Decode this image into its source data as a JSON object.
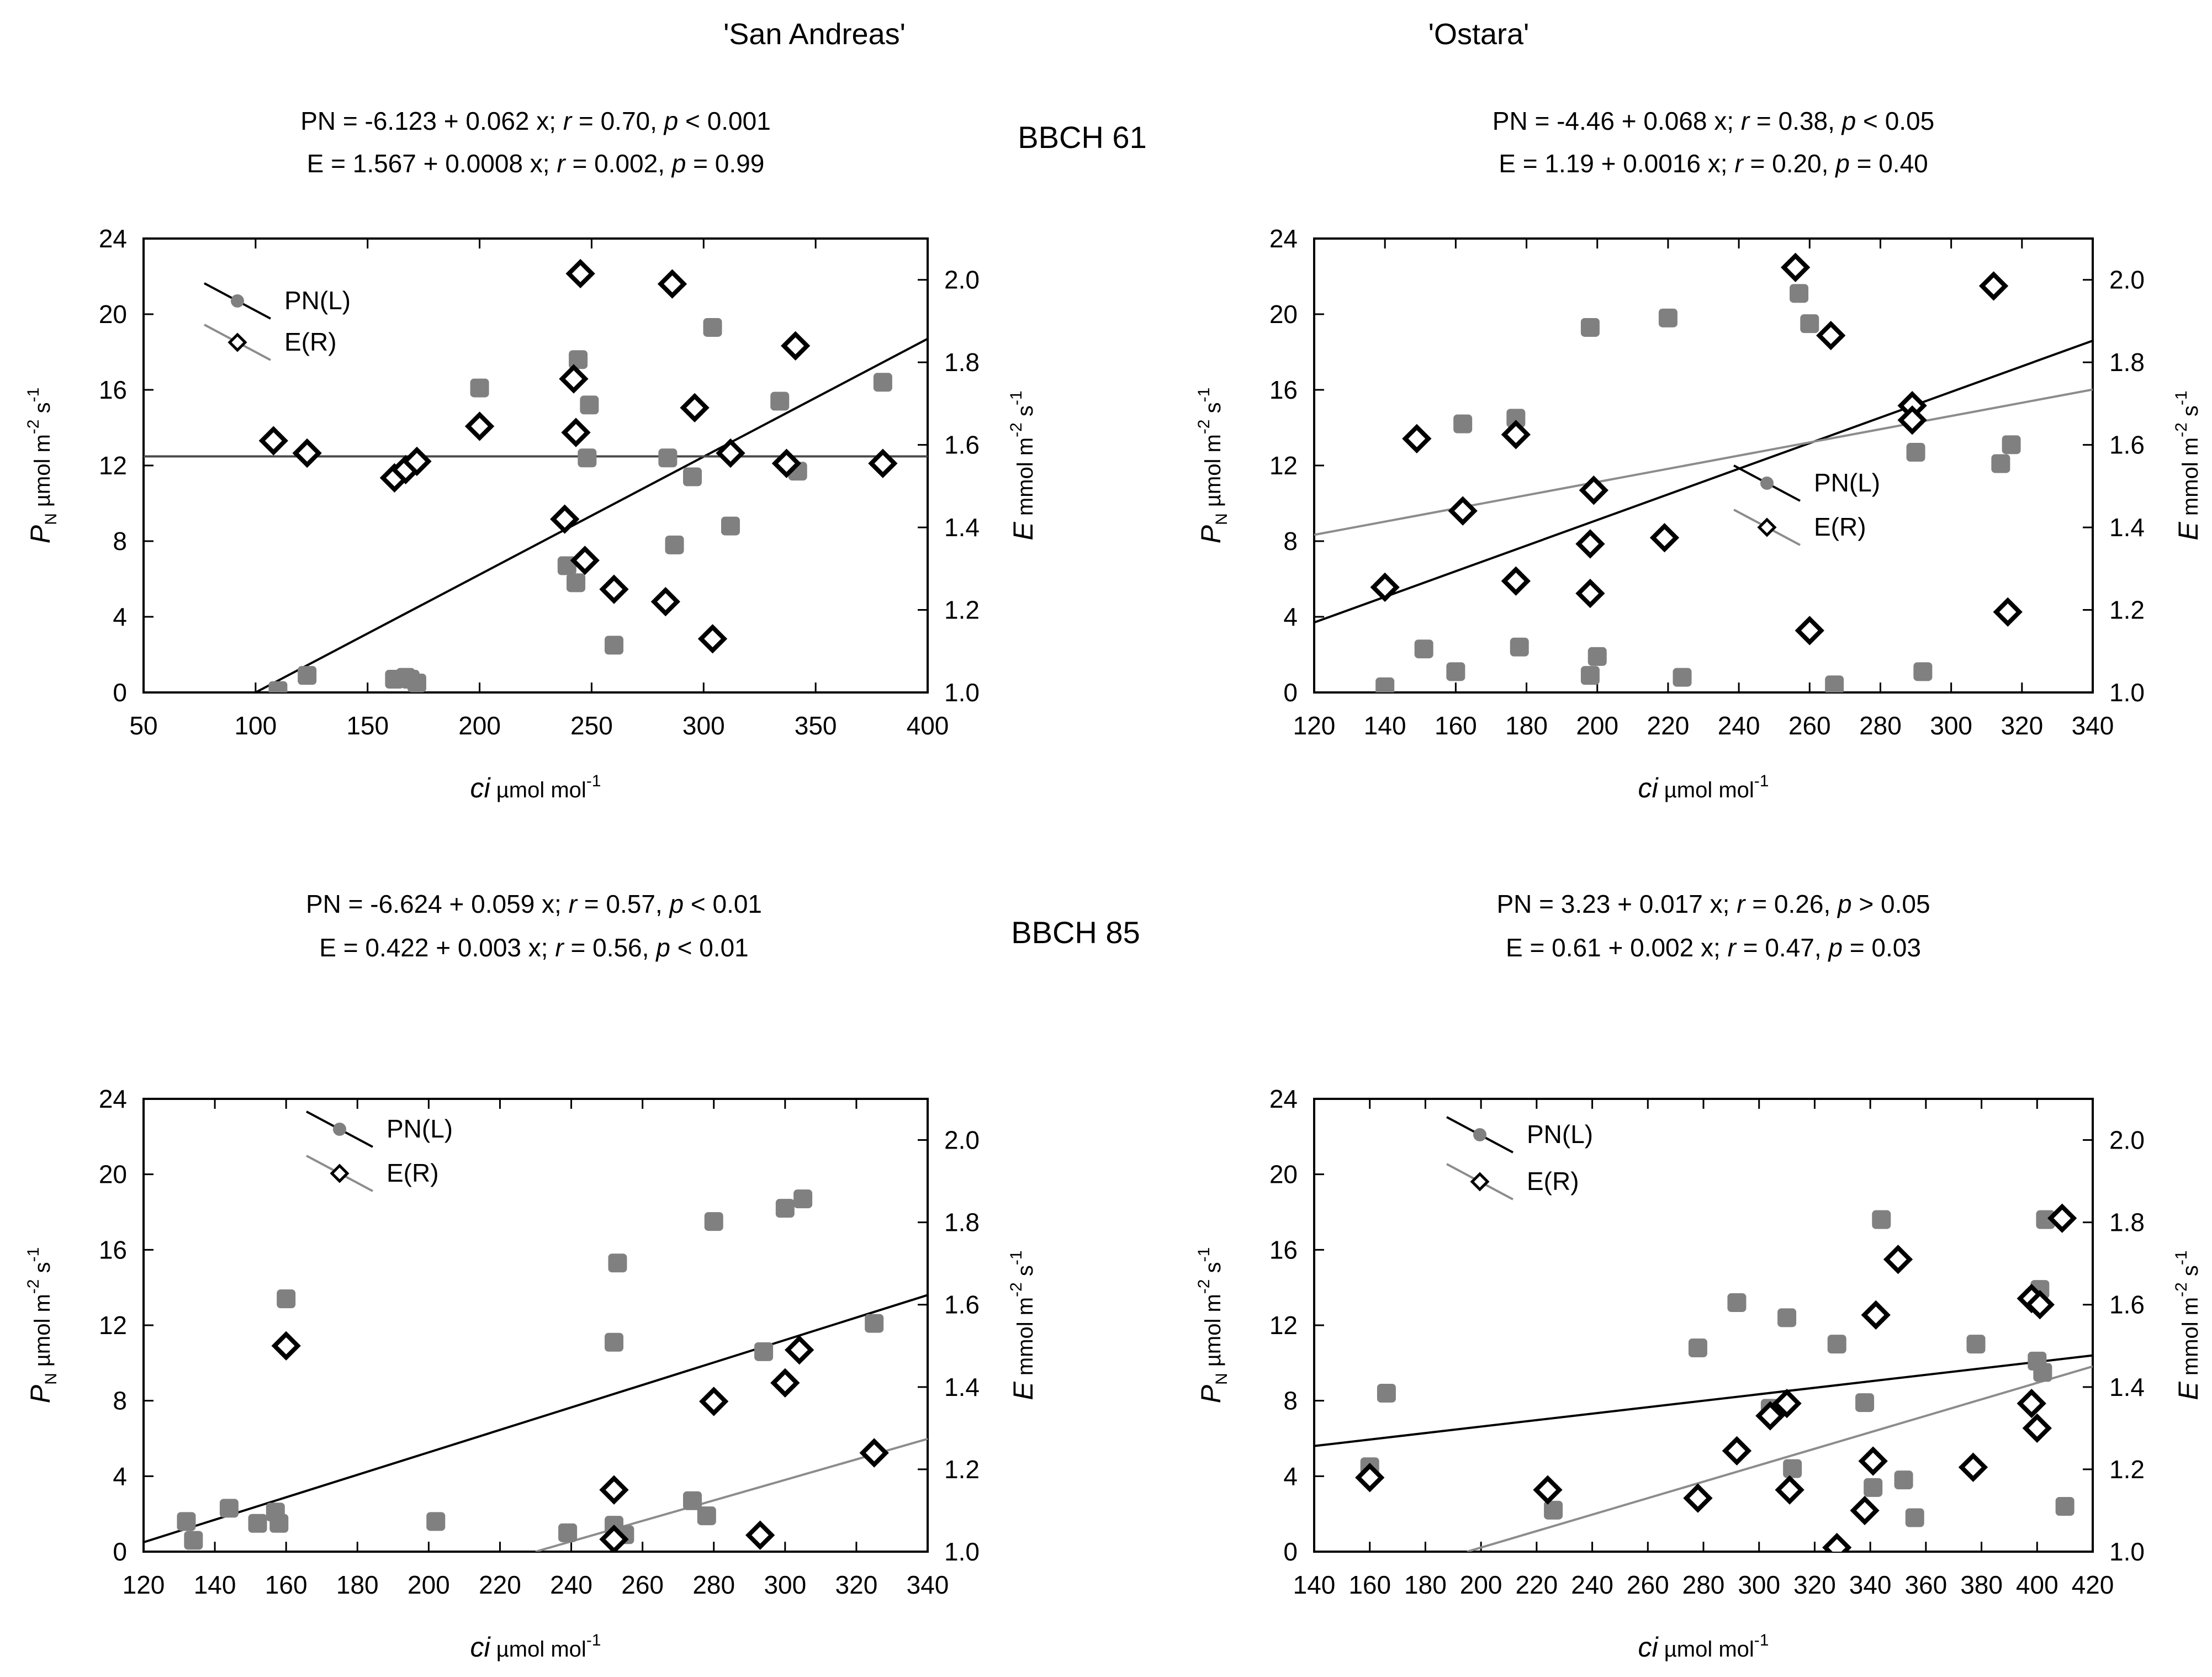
{
  "figure": {
    "col_titles": [
      "'San Andreas'",
      "'Ostara'"
    ],
    "stage_labels": [
      "BBCH 61",
      "BBCH 85"
    ],
    "legend": {
      "pn_label": "PN(L)",
      "e_label": "E(R)"
    },
    "axis_text": {
      "x_main": "ci",
      "x_unit": " µmol mol",
      "x_exp": "-1",
      "yl_main": "P",
      "yl_sub": "N",
      "yl_unit1": " µmol m",
      "yl_exp1": "-2",
      "yl_unit2": " s",
      "yl_exp2": "-1",
      "yr_main": "E",
      "yr_unit1": " mmol m",
      "yr_exp1": "-2",
      "yr_unit2": " s",
      "yr_exp2": "-1"
    }
  },
  "chart_data": [
    {
      "type": "scatter",
      "id": "sa61",
      "cultivar": "'San Andreas'",
      "stage": "BBCH 61",
      "equations": {
        "pn": {
          "a": "PN = -6.123 + 0.062 x; ",
          "r_sym": "r",
          "b": " = 0.70, ",
          "p_sym": "p",
          "c": " < 0.001"
        },
        "e": {
          "a": "E = 1.567 + 0.0008 x; ",
          "r_sym": "r",
          "b": " = 0.002, ",
          "p_sym": "p",
          "c": " = 0.99"
        }
      },
      "xlim": [
        50,
        400
      ],
      "xticks": [
        50,
        100,
        150,
        200,
        250,
        300,
        350,
        400
      ],
      "ylim_left": [
        0,
        24
      ],
      "yticks_left": [
        0,
        4,
        8,
        12,
        16,
        20,
        24
      ],
      "ylim_right": [
        1.0,
        2.1
      ],
      "yticks_right": [
        1.0,
        1.2,
        1.4,
        1.6,
        1.8,
        2.0
      ],
      "legend_position": "top-left",
      "series": [
        {
          "name": "PN(L)",
          "axis": "left",
          "marker": "square-gray",
          "points": [
            [
              110,
              0.1
            ],
            [
              123,
              0.9
            ],
            [
              162,
              0.7
            ],
            [
              167,
              0.8
            ],
            [
              169,
              0.7
            ],
            [
              172,
              0.5
            ],
            [
              200,
              16.1
            ],
            [
              239,
              6.7
            ],
            [
              243,
              5.8
            ],
            [
              244,
              17.6
            ],
            [
              248,
              12.4
            ],
            [
              249,
              15.2
            ],
            [
              260,
              2.5
            ],
            [
              284,
              12.4
            ],
            [
              287,
              7.8
            ],
            [
              295,
              11.4
            ],
            [
              304,
              19.3
            ],
            [
              312,
              8.8
            ],
            [
              334,
              15.4
            ],
            [
              342,
              11.7
            ],
            [
              380,
              16.4
            ]
          ],
          "fit": {
            "line": [
              [
                100,
                0
              ],
              [
                400,
                18.7
              ]
            ],
            "color": "#000000"
          }
        },
        {
          "name": "E(R)",
          "axis": "right",
          "marker": "diamond-open",
          "points": [
            [
              108,
              1.61
            ],
            [
              123,
              1.58
            ],
            [
              162,
              1.52
            ],
            [
              167,
              1.54
            ],
            [
              172,
              1.56
            ],
            [
              200,
              1.645
            ],
            [
              238,
              1.42
            ],
            [
              242,
              1.76
            ],
            [
              243,
              1.63
            ],
            [
              245,
              2.015
            ],
            [
              247,
              1.32
            ],
            [
              260,
              1.25
            ],
            [
              283,
              1.22
            ],
            [
              286,
              1.99
            ],
            [
              296,
              1.69
            ],
            [
              304,
              1.13
            ],
            [
              312,
              1.58
            ],
            [
              337,
              1.555
            ],
            [
              341,
              1.84
            ],
            [
              380,
              1.555
            ]
          ],
          "fit": {
            "line": [
              [
                50,
                1.572
              ],
              [
                400,
                1.572
              ]
            ],
            "color": "#4a4a4a"
          }
        }
      ]
    },
    {
      "type": "scatter",
      "id": "os61",
      "cultivar": "'Ostara'",
      "stage": "BBCH 61",
      "equations": {
        "pn": {
          "a": "PN = -4.46 + 0.068 x; ",
          "r_sym": "r",
          "b": " = 0.38, ",
          "p_sym": "p",
          "c": " < 0.05"
        },
        "e": {
          "a": "E = 1.19 + 0.0016 x; ",
          "r_sym": "r",
          "b": " = 0.20, ",
          "p_sym": "p",
          "c": " = 0.40"
        }
      },
      "xlim": [
        120,
        340
      ],
      "xticks": [
        120,
        140,
        160,
        180,
        200,
        220,
        240,
        260,
        280,
        300,
        320,
        340
      ],
      "ylim_left": [
        0,
        24
      ],
      "yticks_left": [
        0,
        4,
        8,
        12,
        16,
        20,
        24
      ],
      "ylim_right": [
        1.0,
        2.1
      ],
      "yticks_right": [
        1.0,
        1.2,
        1.4,
        1.6,
        1.8,
        2.0
      ],
      "legend_position": "center-right",
      "series": [
        {
          "name": "PN(L)",
          "axis": "left",
          "marker": "square-gray",
          "points": [
            [
              140,
              0.3
            ],
            [
              151,
              2.3
            ],
            [
              160,
              1.1
            ],
            [
              162,
              14.2
            ],
            [
              177,
              14.5
            ],
            [
              178,
              2.4
            ],
            [
              198,
              19.3
            ],
            [
              198,
              0.9
            ],
            [
              200,
              1.9
            ],
            [
              220,
              19.8
            ],
            [
              224,
              0.8
            ],
            [
              257,
              21.1
            ],
            [
              260,
              19.5
            ],
            [
              267,
              0.4
            ],
            [
              290,
              12.7
            ],
            [
              292,
              1.1
            ],
            [
              314,
              12.1
            ],
            [
              317,
              13.1
            ]
          ],
          "fit": {
            "line": [
              [
                120,
                3.7
              ],
              [
                340,
                18.6
              ]
            ],
            "color": "#000000"
          }
        },
        {
          "name": "E(R)",
          "axis": "right",
          "marker": "diamond-open",
          "points": [
            [
              140,
              1.255
            ],
            [
              149,
              1.615
            ],
            [
              162,
              1.44
            ],
            [
              177,
              1.27
            ],
            [
              177,
              1.625
            ],
            [
              198,
              1.36
            ],
            [
              198,
              1.24
            ],
            [
              199,
              1.49
            ],
            [
              219,
              1.375
            ],
            [
              256,
              2.03
            ],
            [
              260,
              1.15
            ],
            [
              266,
              1.865
            ],
            [
              289,
              1.695
            ],
            [
              289,
              1.66
            ],
            [
              312,
              1.985
            ],
            [
              316,
              1.195
            ]
          ],
          "fit": {
            "line": [
              [
                120,
                1.382
              ],
              [
                340,
                1.734
              ]
            ],
            "color": "#8c8c8c"
          }
        }
      ]
    },
    {
      "type": "scatter",
      "id": "sa85",
      "cultivar": "'San Andreas'",
      "stage": "BBCH 85",
      "equations": {
        "pn": {
          "a": "PN = -6.624 + 0.059 x; ",
          "r_sym": "r",
          "b": " = 0.57, ",
          "p_sym": "p",
          "c": " < 0.01"
        },
        "e": {
          "a": "E = 0.422 + 0.003 x; ",
          "r_sym": "r",
          "b": " = 0.56, ",
          "p_sym": "p",
          "c": " < 0.01"
        }
      },
      "xlim": [
        120,
        340
      ],
      "xticks": [
        120,
        140,
        160,
        180,
        200,
        220,
        240,
        260,
        280,
        300,
        320,
        340
      ],
      "ylim_left": [
        0,
        24
      ],
      "yticks_left": [
        0,
        4,
        8,
        12,
        16,
        20,
        24
      ],
      "ylim_right": [
        1.0,
        2.1
      ],
      "yticks_right": [
        1.0,
        1.2,
        1.4,
        1.6,
        1.8,
        2.0
      ],
      "legend_position": "top-left",
      "series": [
        {
          "name": "PN(L)",
          "axis": "left",
          "marker": "square-gray",
          "points": [
            [
              132,
              1.6
            ],
            [
              134,
              0.6
            ],
            [
              144,
              2.3
            ],
            [
              152,
              1.5
            ],
            [
              157,
              2.1
            ],
            [
              158,
              1.5
            ],
            [
              160,
              13.4
            ],
            [
              202,
              1.6
            ],
            [
              239,
              1.0
            ],
            [
              252,
              11.1
            ],
            [
              253,
              15.3
            ],
            [
              252,
              1.4
            ],
            [
              255,
              0.9
            ],
            [
              274,
              2.7
            ],
            [
              278,
              1.9
            ],
            [
              280,
              17.5
            ],
            [
              294,
              10.6
            ],
            [
              300,
              18.2
            ],
            [
              305,
              18.7
            ],
            [
              325,
              12.1
            ]
          ],
          "fit": {
            "line": [
              [
                120,
                0.5
              ],
              [
                340,
                13.6
              ]
            ],
            "color": "#000000"
          }
        },
        {
          "name": "E(R)",
          "axis": "right",
          "marker": "diamond-open",
          "points": [
            [
              160,
              1.5
            ],
            [
              252,
              1.15
            ],
            [
              252,
              1.03
            ],
            [
              280,
              1.365
            ],
            [
              293,
              1.04
            ],
            [
              300,
              1.41
            ],
            [
              304,
              1.49
            ],
            [
              325,
              1.24
            ]
          ],
          "fit": {
            "line": [
              [
                230,
                1.0
              ],
              [
                340,
                1.274
              ]
            ],
            "color": "#8c8c8c"
          }
        }
      ]
    },
    {
      "type": "scatter",
      "id": "os85",
      "cultivar": "'Ostara'",
      "stage": "BBCH 85",
      "equations": {
        "pn": {
          "a": "PN = 3.23 + 0.017 x; ",
          "r_sym": "r",
          "b": " = 0.26, ",
          "p_sym": "p",
          "c": " > 0.05"
        },
        "e": {
          "a": "E = 0.61 + 0.002 x; ",
          "r_sym": "r",
          "b": " = 0.47, ",
          "p_sym": "p",
          "c": " = 0.03"
        }
      },
      "xlim": [
        140,
        420
      ],
      "xticks": [
        140,
        160,
        180,
        200,
        220,
        240,
        260,
        280,
        300,
        320,
        340,
        360,
        380,
        400,
        420
      ],
      "ylim_left": [
        0,
        24
      ],
      "yticks_left": [
        0,
        4,
        8,
        12,
        16,
        20,
        24
      ],
      "ylim_right": [
        1.0,
        2.1
      ],
      "yticks_right": [
        1.0,
        1.2,
        1.4,
        1.6,
        1.8,
        2.0
      ],
      "legend_position": "top-left",
      "series": [
        {
          "name": "PN(L)",
          "axis": "left",
          "marker": "square-gray",
          "points": [
            [
              160,
              4.5
            ],
            [
              166,
              8.4
            ],
            [
              226,
              2.2
            ],
            [
              278,
              10.8
            ],
            [
              292,
              13.2
            ],
            [
              304,
              7.6
            ],
            [
              310,
              12.4
            ],
            [
              312,
              4.4
            ],
            [
              328,
              11.0
            ],
            [
              338,
              7.9
            ],
            [
              341,
              3.4
            ],
            [
              344,
              17.6
            ],
            [
              352,
              3.8
            ],
            [
              356,
              1.8
            ],
            [
              378,
              11.0
            ],
            [
              400,
              10.1
            ],
            [
              401,
              13.9
            ],
            [
              402,
              9.5
            ],
            [
              403,
              17.6
            ],
            [
              410,
              2.4
            ]
          ],
          "fit": {
            "line": [
              [
                140,
                5.6
              ],
              [
                420,
                10.4
              ]
            ],
            "color": "#000000"
          }
        },
        {
          "name": "E(R)",
          "axis": "right",
          "marker": "diamond-open",
          "points": [
            [
              160,
              1.18
            ],
            [
              224,
              1.15
            ],
            [
              278,
              1.13
            ],
            [
              292,
              1.245
            ],
            [
              304,
              1.33
            ],
            [
              310,
              1.36
            ],
            [
              311,
              1.15
            ],
            [
              328,
              1.01
            ],
            [
              338,
              1.1
            ],
            [
              341,
              1.22
            ],
            [
              342,
              1.575
            ],
            [
              350,
              1.71
            ],
            [
              377,
              1.205
            ],
            [
              398,
              1.615
            ],
            [
              398,
              1.36
            ],
            [
              400,
              1.3
            ],
            [
              401,
              1.6
            ],
            [
              409,
              1.81
            ]
          ],
          "fit": {
            "line": [
              [
                195,
                1.0
              ],
              [
                420,
                1.45
              ]
            ],
            "color": "#8c8c8c"
          }
        }
      ]
    }
  ]
}
